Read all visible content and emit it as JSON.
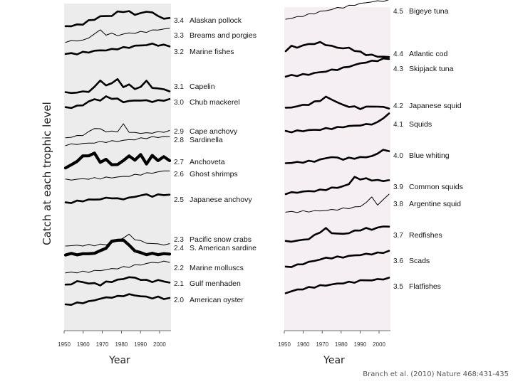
{
  "ylabel": "Catch at each trophic level",
  "citation": "Branch et al. (2010) Nature 468:431-435",
  "chart_data": [
    {
      "type": "line",
      "xlabel": "Year",
      "xticks": [
        "1950",
        "1960",
        "1970",
        "1980",
        "1990",
        "2000"
      ],
      "xlim": [
        1950,
        2006
      ],
      "background": "#ececec",
      "series": [
        {
          "level": "3.4",
          "name": "Alaskan pollock",
          "weight": "bold",
          "labelRow": 0,
          "y": [
            0.05,
            0.07,
            0.12,
            0.2,
            0.38,
            0.5,
            0.66,
            0.7,
            0.72,
            0.95,
            1.0,
            0.96,
            0.82,
            0.86,
            0.98,
            0.95,
            0.66,
            0.58,
            0.52
          ],
          "ly": 0.5
        },
        {
          "level": "3.3",
          "name": "Breams and porgies",
          "weight": "thin",
          "labelRow": 1,
          "y": [
            0.02,
            0.05,
            0.08,
            0.12,
            0.22,
            0.55,
            0.72,
            0.48,
            0.52,
            0.42,
            0.5,
            0.55,
            0.58,
            0.62,
            0.66,
            0.72,
            0.78,
            0.82,
            0.86
          ],
          "ly": 0.82
        },
        {
          "level": "3.2",
          "name": "Marine fishes",
          "weight": "bold",
          "labelRow": 2,
          "y": [
            0.3,
            0.28,
            0.3,
            0.36,
            0.4,
            0.46,
            0.5,
            0.52,
            0.55,
            0.62,
            0.66,
            0.7,
            0.78,
            0.82,
            0.86,
            0.9,
            0.85,
            0.82,
            0.8
          ],
          "ly": 0.8
        },
        {
          "level": "3.1",
          "name": "Capelin",
          "weight": "bold",
          "labelRow": 3,
          "y": [
            0.02,
            0.02,
            0.04,
            0.08,
            0.12,
            0.35,
            0.85,
            0.45,
            0.65,
            0.9,
            0.35,
            0.6,
            0.2,
            0.45,
            0.75,
            0.35,
            0.3,
            0.22,
            0.15
          ],
          "ly": 0.15
        },
        {
          "level": "3.0",
          "name": "Chub mackerel",
          "weight": "bold",
          "labelRow": 4,
          "y": [
            0.05,
            0.1,
            0.15,
            0.25,
            0.45,
            0.6,
            0.55,
            0.75,
            0.68,
            0.6,
            0.45,
            0.48,
            0.52,
            0.55,
            0.5,
            0.48,
            0.5,
            0.55,
            0.6
          ],
          "ly": 0.6
        },
        {
          "level": "2.9",
          "name": "Cape anchovy",
          "weight": "thin",
          "labelRow": 5,
          "y": [
            0.02,
            0.05,
            0.12,
            0.2,
            0.35,
            0.65,
            0.55,
            0.4,
            0.45,
            0.35,
            0.95,
            0.3,
            0.4,
            0.25,
            0.35,
            0.3,
            0.38,
            0.4,
            0.42
          ],
          "ly": 0.42
        },
        {
          "level": "2.8",
          "name": "Sardinella",
          "weight": "thin",
          "labelRow": 6,
          "y": [
            0.1,
            0.12,
            0.15,
            0.18,
            0.2,
            0.25,
            0.28,
            0.3,
            0.32,
            0.35,
            0.38,
            0.42,
            0.45,
            0.5,
            0.55,
            0.58,
            0.6,
            0.62,
            0.62
          ],
          "ly": 0.62
        },
        {
          "level": "2.7",
          "name": "Anchoveta",
          "weight": "xbold",
          "labelRow": 7,
          "y": [
            0.05,
            0.2,
            0.5,
            0.75,
            0.85,
            0.95,
            0.4,
            0.6,
            0.2,
            0.3,
            0.45,
            0.85,
            0.5,
            0.9,
            0.3,
            0.8,
            0.55,
            0.7,
            0.55
          ],
          "ly": 0.55
        },
        {
          "level": "2.6",
          "name": "Ghost shrimps",
          "weight": "thin",
          "labelRow": 8,
          "y": [
            0.05,
            0.06,
            0.08,
            0.1,
            0.12,
            0.14,
            0.15,
            0.18,
            0.2,
            0.22,
            0.25,
            0.3,
            0.35,
            0.4,
            0.45,
            0.5,
            0.55,
            0.6,
            0.65
          ],
          "ly": 0.65
        },
        {
          "level": "2.5",
          "name": "Japanese anchovy",
          "weight": "bold",
          "labelRow": 9,
          "y": [
            0.2,
            0.25,
            0.3,
            0.35,
            0.4,
            0.42,
            0.45,
            0.5,
            0.55,
            0.45,
            0.48,
            0.52,
            0.6,
            0.7,
            0.72,
            0.65,
            0.7,
            0.75,
            0.7
          ],
          "ly": 0.7
        },
        {
          "level": "2.3",
          "name": "Pacific snow crabs",
          "weight": "thin",
          "labelRow": 10,
          "y": [
            0.02,
            0.02,
            0.03,
            0.04,
            0.05,
            0.06,
            0.08,
            0.1,
            0.2,
            0.3,
            0.55,
            0.7,
            0.45,
            0.3,
            0.2,
            0.15,
            0.12,
            0.1,
            0.1
          ],
          "ly": 0.1
        },
        {
          "level": "2.4",
          "name": "S. American sardine",
          "weight": "xbold",
          "labelRow": 11,
          "y": [
            0.02,
            0.02,
            0.02,
            0.03,
            0.05,
            0.1,
            0.2,
            0.45,
            0.8,
            0.95,
            0.9,
            0.6,
            0.25,
            0.08,
            0.04,
            0.03,
            0.03,
            0.03,
            0.03
          ],
          "ly": 0.03
        },
        {
          "level": "2.2",
          "name": "Marine molluscs",
          "weight": "thin",
          "labelRow": 12,
          "y": [
            0.1,
            0.12,
            0.14,
            0.16,
            0.18,
            0.22,
            0.26,
            0.3,
            0.35,
            0.4,
            0.45,
            0.5,
            0.58,
            0.62,
            0.7,
            0.75,
            0.78,
            0.8,
            0.82
          ],
          "ly": 0.82
        },
        {
          "level": "2.1",
          "name": "Gulf menhaden",
          "weight": "bold",
          "labelRow": 13,
          "y": [
            0.3,
            0.4,
            0.55,
            0.5,
            0.45,
            0.4,
            0.35,
            0.5,
            0.55,
            0.65,
            0.7,
            0.85,
            0.75,
            0.7,
            0.6,
            0.55,
            0.62,
            0.55,
            0.5
          ],
          "ly": 0.5
        },
        {
          "level": "2.0",
          "name": "American oyster",
          "weight": "bold",
          "labelRow": 14,
          "y": [
            0.1,
            0.15,
            0.2,
            0.25,
            0.3,
            0.4,
            0.5,
            0.55,
            0.6,
            0.62,
            0.7,
            0.75,
            0.72,
            0.65,
            0.6,
            0.55,
            0.58,
            0.52,
            0.5
          ],
          "ly": 0.5
        }
      ]
    },
    {
      "type": "line",
      "xlabel": "Year",
      "xticks": [
        "1950",
        "1960",
        "1970",
        "1980",
        "1990",
        "2000"
      ],
      "xlim": [
        1950,
        2006
      ],
      "background": "#f5eef3",
      "series": [
        {
          "level": "4.5",
          "name": "Bigeye tuna",
          "weight": "thin",
          "labelRow": 0,
          "y": [
            0.02,
            0.08,
            0.12,
            0.2,
            0.25,
            0.32,
            0.4,
            0.45,
            0.52,
            0.58,
            0.62,
            0.68,
            0.75,
            0.8,
            0.85,
            0.9,
            0.92,
            0.95,
            0.96
          ],
          "ly": 0.96
        },
        {
          "level": "4.4",
          "name": "Atlantic cod",
          "weight": "bold",
          "labelRow": 1,
          "y": [
            0.6,
            0.8,
            0.75,
            0.85,
            0.9,
            0.95,
            0.98,
            0.9,
            0.8,
            0.75,
            0.7,
            0.72,
            0.6,
            0.5,
            0.4,
            0.35,
            0.3,
            0.28,
            0.25
          ],
          "ly": 0.25
        },
        {
          "level": "4.3",
          "name": "Skipjack tuna",
          "weight": "bold",
          "labelRow": 2,
          "y": [
            0.05,
            0.08,
            0.1,
            0.12,
            0.15,
            0.2,
            0.25,
            0.3,
            0.35,
            0.4,
            0.45,
            0.55,
            0.6,
            0.7,
            0.75,
            0.8,
            0.85,
            0.9,
            0.95
          ],
          "ly": 0.95
        },
        {
          "level": "4.2",
          "name": "Japanese squid",
          "weight": "bold",
          "labelRow": 3,
          "y": [
            0.3,
            0.35,
            0.4,
            0.45,
            0.5,
            0.6,
            0.7,
            0.85,
            0.75,
            0.6,
            0.45,
            0.4,
            0.35,
            0.3,
            0.35,
            0.4,
            0.38,
            0.35,
            0.32
          ],
          "ly": 0.32
        },
        {
          "level": "4.1",
          "name": "Squids",
          "weight": "bold",
          "labelRow": 4,
          "y": [
            0.05,
            0.06,
            0.08,
            0.1,
            0.12,
            0.14,
            0.16,
            0.2,
            0.22,
            0.25,
            0.3,
            0.32,
            0.35,
            0.38,
            0.4,
            0.45,
            0.5,
            0.75,
            0.95
          ],
          "ly": 0.95
        },
        {
          "level": "4.0",
          "name": "Blue whiting",
          "weight": "bold",
          "labelRow": 5,
          "y": [
            0.05,
            0.06,
            0.08,
            0.1,
            0.12,
            0.15,
            0.2,
            0.3,
            0.35,
            0.3,
            0.25,
            0.28,
            0.3,
            0.32,
            0.35,
            0.4,
            0.5,
            0.75,
            0.6
          ],
          "ly": 0.6
        },
        {
          "level": "3.9",
          "name": "Common squids",
          "weight": "bold",
          "labelRow": 6,
          "y": [
            0.1,
            0.12,
            0.15,
            0.18,
            0.2,
            0.22,
            0.25,
            0.3,
            0.35,
            0.4,
            0.45,
            0.55,
            0.95,
            0.75,
            0.9,
            0.7,
            0.8,
            0.7,
            0.75
          ],
          "ly": 0.75
        },
        {
          "level": "3.8",
          "name": "Argentine squid",
          "weight": "thin",
          "labelRow": 7,
          "y": [
            0.02,
            0.02,
            0.03,
            0.04,
            0.05,
            0.06,
            0.08,
            0.1,
            0.12,
            0.15,
            0.18,
            0.22,
            0.25,
            0.3,
            0.5,
            0.75,
            0.4,
            0.6,
            0.95
          ],
          "ly": 0.95
        },
        {
          "level": "3.7",
          "name": "Redfishes",
          "weight": "bold",
          "labelRow": 8,
          "y": [
            0.1,
            0.12,
            0.15,
            0.18,
            0.25,
            0.4,
            0.6,
            0.75,
            0.55,
            0.5,
            0.48,
            0.55,
            0.62,
            0.7,
            0.75,
            0.72,
            0.8,
            0.85,
            0.88
          ],
          "ly": 0.88
        },
        {
          "level": "3.6",
          "name": "Scads",
          "weight": "bold",
          "labelRow": 9,
          "y": [
            0.1,
            0.15,
            0.2,
            0.28,
            0.35,
            0.42,
            0.5,
            0.55,
            0.58,
            0.6,
            0.62,
            0.65,
            0.7,
            0.72,
            0.75,
            0.78,
            0.8,
            0.85,
            0.9
          ],
          "ly": 0.9
        },
        {
          "level": "3.5",
          "name": "Flatfishes",
          "weight": "bold",
          "labelRow": 10,
          "y": [
            0.1,
            0.18,
            0.25,
            0.3,
            0.35,
            0.4,
            0.45,
            0.48,
            0.52,
            0.55,
            0.6,
            0.62,
            0.65,
            0.7,
            0.75,
            0.72,
            0.78,
            0.8,
            0.82
          ],
          "ly": 0.82
        }
      ]
    }
  ]
}
